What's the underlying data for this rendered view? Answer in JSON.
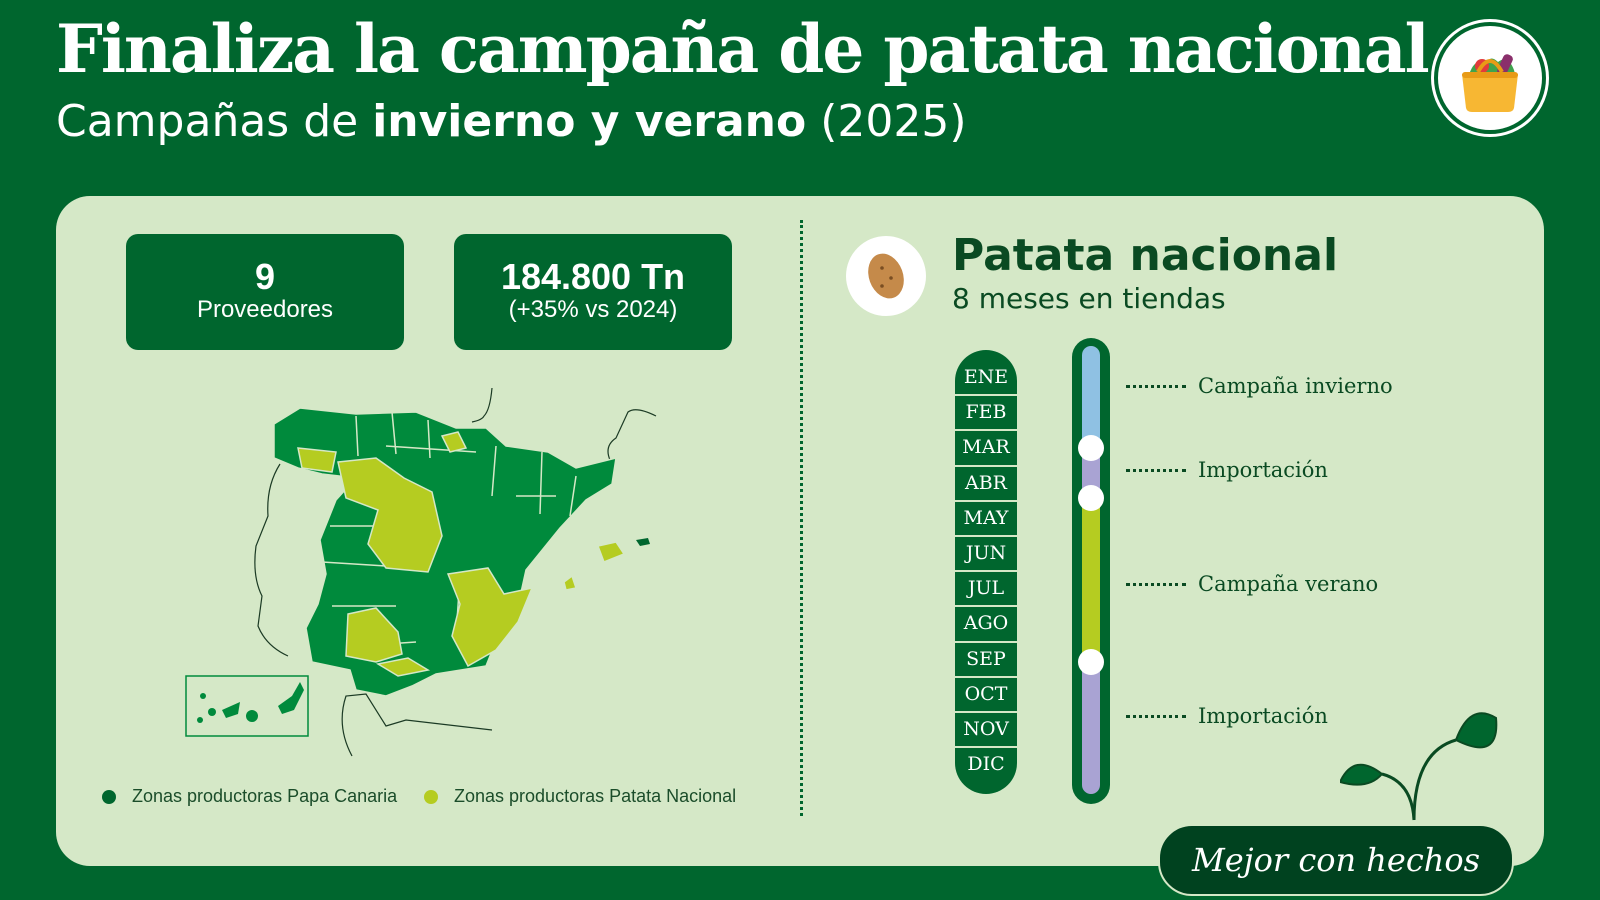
{
  "header": {
    "title": "Finaliza la campaña de patata nacional",
    "subtitle_prefix": "Campañas de ",
    "subtitle_bold": "invierno y verano",
    "subtitle_suffix": " (2025)"
  },
  "stats": [
    {
      "big": "9",
      "small": "Proveedores"
    },
    {
      "big": "184.800 Tn",
      "small": "(+35% vs 2024)"
    }
  ],
  "legend": [
    {
      "label": "Zonas productoras Papa Canaria",
      "color": "#00662e"
    },
    {
      "label": "Zonas productoras Patata Nacional",
      "color": "#b5cc21"
    }
  ],
  "product": {
    "title": "Patata nacional",
    "subtitle": "8 meses en tiendas"
  },
  "months": [
    "ENE",
    "FEB",
    "MAR",
    "ABR",
    "MAY",
    "JUN",
    "JUL",
    "AGO",
    "SEP",
    "OCT",
    "NOV",
    "DIC"
  ],
  "phases": [
    {
      "label": "Campaña invierno",
      "color": "#8fc1e3"
    },
    {
      "label": "Importación",
      "color": "#a9a3d3"
    },
    {
      "label": "Campaña verano",
      "color": "#b5cc21"
    },
    {
      "label": "Importación",
      "color": "#a9a3d3"
    }
  ],
  "slogan": "Mejor con hechos",
  "colors": {
    "background": "#00662e",
    "panel": "#d5e8c7",
    "canaria": "#00662e",
    "nacional": "#b5cc21",
    "map_green": "#008a3c"
  },
  "icons": [
    "basket-logo-icon",
    "potato-icon",
    "sprout-icon"
  ]
}
